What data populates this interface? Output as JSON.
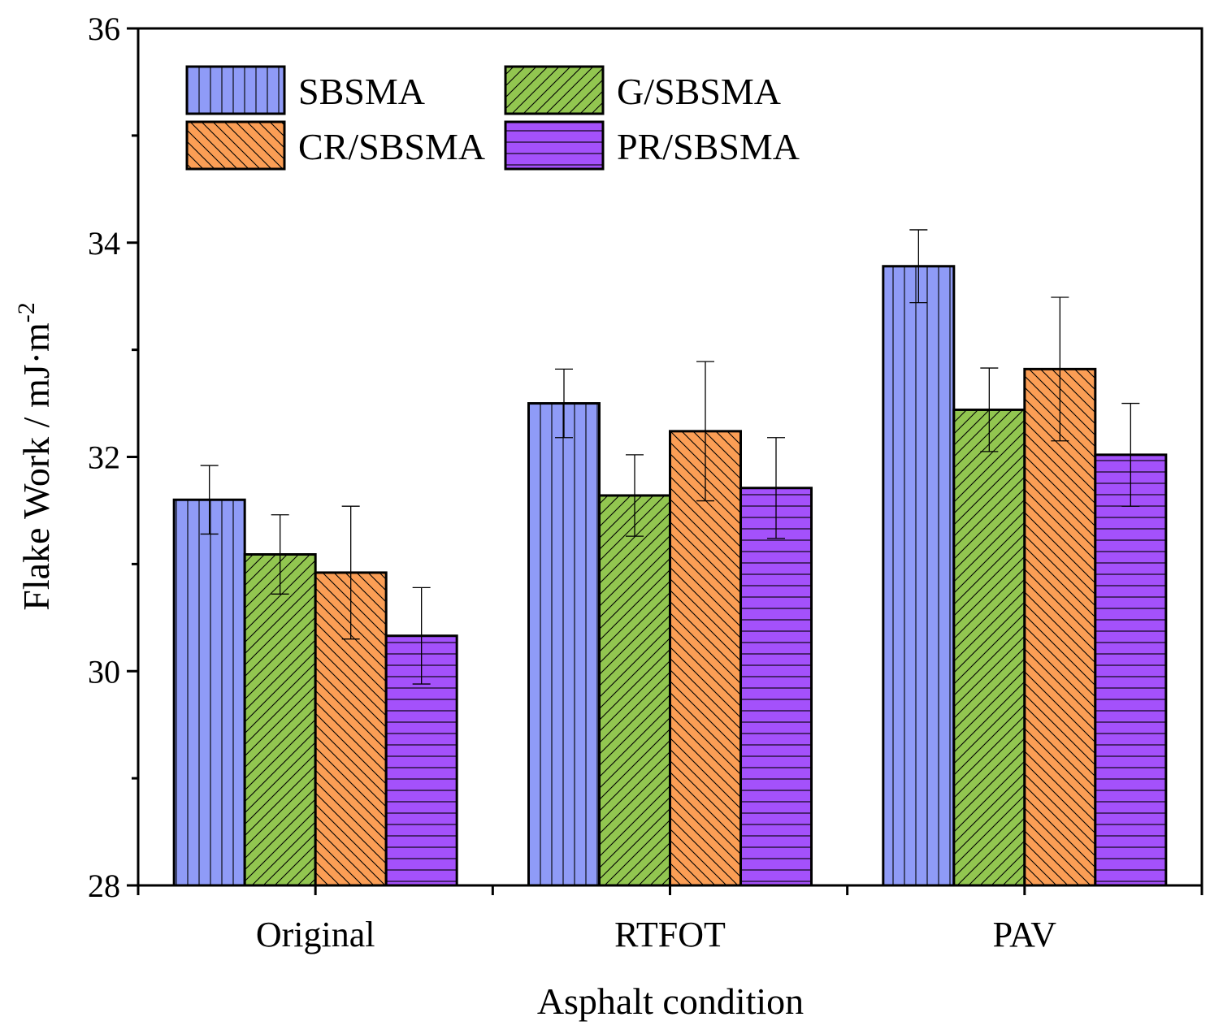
{
  "chart_data": {
    "type": "bar",
    "title": "",
    "xlabel": "Asphalt condition",
    "ylabel": "Flake Work / mJ·m",
    "ylabel_superscript": "-2",
    "ylim": [
      28,
      36
    ],
    "yticks": [
      "28",
      "30",
      "32",
      "34",
      "36"
    ],
    "categories": [
      "Original",
      "RTFOT",
      "PAV"
    ],
    "legend_position": "top-left",
    "series": [
      {
        "name": "SBSMA",
        "color": "#8f9bf7",
        "pattern": "vertical",
        "values": [
          31.6,
          32.5,
          33.78
        ],
        "errors": [
          0.32,
          0.32,
          0.34
        ]
      },
      {
        "name": "G/SBSMA",
        "color": "#92c650",
        "pattern": "diag-up",
        "values": [
          31.09,
          31.64,
          32.44
        ],
        "errors": [
          0.37,
          0.38,
          0.39
        ]
      },
      {
        "name": "CR/SBSMA",
        "color": "#fb9e55",
        "pattern": "diag-down",
        "values": [
          30.92,
          32.24,
          32.82
        ],
        "errors": [
          0.62,
          0.65,
          0.67
        ]
      },
      {
        "name": "PR/SBSMA",
        "color": "#a451fb",
        "pattern": "horizontal",
        "values": [
          30.33,
          31.71,
          32.02
        ],
        "errors": [
          0.45,
          0.47,
          0.48
        ]
      }
    ]
  }
}
